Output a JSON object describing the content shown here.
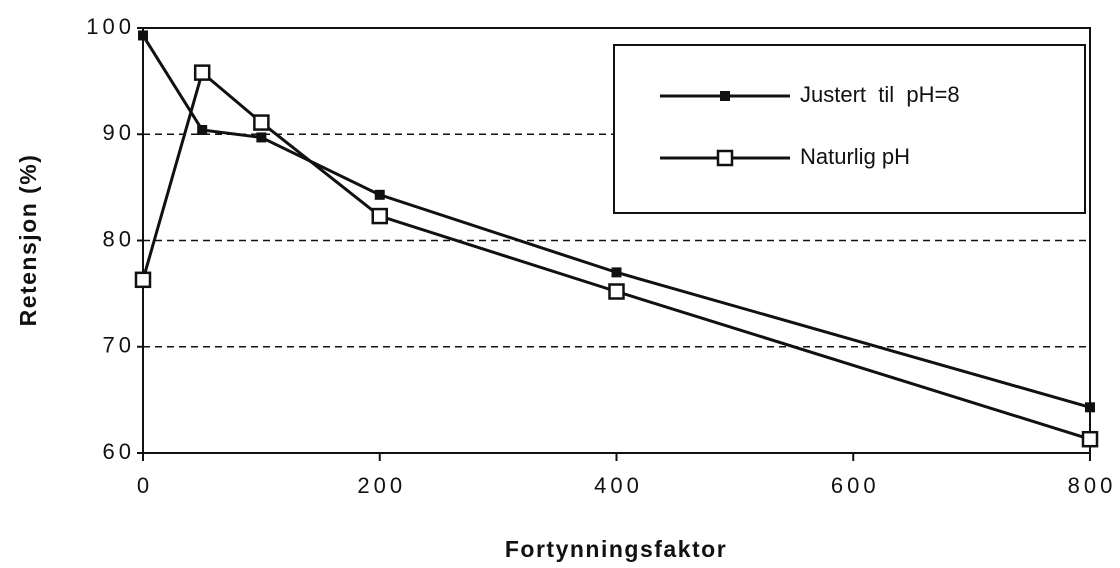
{
  "chart_data": {
    "type": "line",
    "x_label": "Fortynningsfaktor",
    "y_label": "Retensjon    (%)",
    "x": [
      0,
      50,
      100,
      200,
      400,
      800
    ],
    "series": [
      {
        "name": "Justert  til  pH=8",
        "color": "#111111",
        "marker": "filled-square",
        "values": [
          99.3,
          90.4,
          89.7,
          84.3,
          77.0,
          64.3
        ]
      },
      {
        "name": "Naturlig pH",
        "color": "#111111",
        "marker": "open-square",
        "values": [
          76.3,
          95.8,
          91.1,
          82.3,
          75.2,
          61.3
        ]
      }
    ],
    "xlim": [
      0,
      800
    ],
    "xticks": [
      0,
      200,
      400,
      600,
      800
    ],
    "ylim": [
      60,
      100
    ],
    "yticks": [
      60,
      70,
      80,
      90,
      100
    ],
    "grid": true
  }
}
